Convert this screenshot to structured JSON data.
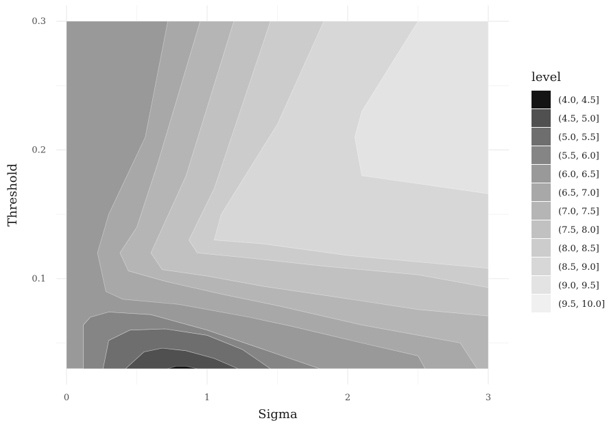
{
  "chart_data": {
    "type": "contour",
    "xlabel": "Sigma",
    "ylabel": "Threshold",
    "xlim": [
      0,
      3
    ],
    "ylim": [
      0.03,
      0.3
    ],
    "xticks": [
      "0",
      "1",
      "2",
      "3"
    ],
    "yticks": [
      "0.1",
      "0.2",
      "0.3"
    ],
    "grid": true,
    "legend": {
      "title": "level",
      "position": "right",
      "entries": [
        {
          "label": "(4.0, 4.5]",
          "color": "#141414"
        },
        {
          "label": "(4.5, 5.0]",
          "color": "#505050"
        },
        {
          "label": "(5.0, 5.5]",
          "color": "#6e6e6e"
        },
        {
          "label": "(5.5, 6.0]",
          "color": "#858585"
        },
        {
          "label": "(6.0, 6.5]",
          "color": "#999999"
        },
        {
          "label": "(6.5, 7.0]",
          "color": "#a8a8a8"
        },
        {
          "label": "(7.0, 7.5]",
          "color": "#b5b5b5"
        },
        {
          "label": "(7.5, 8.0]",
          "color": "#c1c1c1"
        },
        {
          "label": "(8.0, 8.5]",
          "color": "#cccccc"
        },
        {
          "label": "(8.5, 9.0]",
          "color": "#d7d7d7"
        },
        {
          "label": "(9.0, 9.5]",
          "color": "#e3e3e3"
        },
        {
          "label": "(9.5, 10.0]",
          "color": "#f0f0f0"
        }
      ]
    },
    "contours": [
      {
        "level": "(6.0, 6.5]",
        "points": [
          [
            0,
            0.03
          ],
          [
            3,
            0.03
          ],
          [
            3,
            0.3
          ],
          [
            0,
            0.3
          ]
        ]
      },
      {
        "level": "(6.5, 7.0]",
        "points": [
          [
            0,
            0.03
          ],
          [
            3,
            0.03
          ],
          [
            3,
            0.3
          ],
          [
            0.72,
            0.3
          ],
          [
            0.56,
            0.21
          ],
          [
            0.3,
            0.15
          ],
          [
            0.22,
            0.12
          ],
          [
            0.28,
            0.09
          ],
          [
            0.4,
            0.084
          ],
          [
            0.8,
            0.08
          ],
          [
            1.3,
            0.07
          ],
          [
            1.6,
            0.063
          ],
          [
            2.1,
            0.05
          ],
          [
            2.5,
            0.04
          ],
          [
            2.55,
            0.03
          ]
        ]
      },
      {
        "level": "(6.5, 7.0]",
        "points": [
          [
            0,
            0.03
          ],
          [
            0.12,
            0.03
          ],
          [
            0.12,
            0.064
          ],
          [
            0.17,
            0.07
          ],
          [
            0.3,
            0.074
          ],
          [
            0.6,
            0.072
          ],
          [
            1.0,
            0.06
          ],
          [
            1.4,
            0.045
          ],
          [
            1.8,
            0.03
          ]
        ]
      },
      {
        "level": "(7.0, 7.5]",
        "points": [
          [
            3,
            0.03
          ],
          [
            3,
            0.3
          ],
          [
            0.95,
            0.3
          ],
          [
            0.65,
            0.19
          ],
          [
            0.5,
            0.14
          ],
          [
            0.38,
            0.12
          ],
          [
            0.44,
            0.106
          ],
          [
            0.7,
            0.098
          ],
          [
            1.1,
            0.088
          ],
          [
            1.5,
            0.079
          ],
          [
            2.1,
            0.064
          ],
          [
            2.8,
            0.05
          ],
          [
            2.92,
            0.03
          ]
        ]
      },
      {
        "level": "(7.5, 8.0]",
        "points": [
          [
            3,
            0.3
          ],
          [
            1.19,
            0.3
          ],
          [
            0.85,
            0.18
          ],
          [
            0.6,
            0.12
          ],
          [
            0.68,
            0.107
          ],
          [
            1.0,
            0.102
          ],
          [
            1.4,
            0.094
          ],
          [
            1.9,
            0.086
          ],
          [
            2.5,
            0.076
          ],
          [
            3,
            0.071
          ]
        ]
      },
      {
        "level": "(8.0, 8.5]",
        "points": [
          [
            3,
            0.3
          ],
          [
            1.45,
            0.3
          ],
          [
            1.05,
            0.17
          ],
          [
            0.87,
            0.13
          ],
          [
            0.93,
            0.12
          ],
          [
            1.3,
            0.116
          ],
          [
            1.8,
            0.11
          ],
          [
            2.5,
            0.103
          ],
          [
            3,
            0.093
          ]
        ]
      },
      {
        "level": "(8.5, 9.0]",
        "points": [
          [
            3,
            0.3
          ],
          [
            1.83,
            0.3
          ],
          [
            1.5,
            0.22
          ],
          [
            1.1,
            0.15
          ],
          [
            1.05,
            0.13
          ],
          [
            1.4,
            0.127
          ],
          [
            2.0,
            0.118
          ],
          [
            3,
            0.108
          ]
        ]
      },
      {
        "level": "(9.0, 9.5]",
        "points": [
          [
            3,
            0.3
          ],
          [
            2.5,
            0.3
          ],
          [
            2.1,
            0.23
          ],
          [
            2.05,
            0.21
          ],
          [
            2.1,
            0.18
          ],
          [
            3,
            0.166
          ]
        ]
      },
      {
        "level": "(4.5, 5.0]",
        "points": [
          [
            0.42,
            0.03
          ],
          [
            1.22,
            0.03
          ],
          [
            1.05,
            0.038
          ],
          [
            0.85,
            0.044
          ],
          [
            0.68,
            0.046
          ],
          [
            0.55,
            0.043
          ]
        ]
      },
      {
        "level": "(5.0, 5.5]",
        "points": [
          [
            0.26,
            0.03
          ],
          [
            0.42,
            0.03
          ],
          [
            0.55,
            0.043
          ],
          [
            0.68,
            0.046
          ],
          [
            0.85,
            0.044
          ],
          [
            1.05,
            0.038
          ],
          [
            1.22,
            0.03
          ],
          [
            1.45,
            0.03
          ],
          [
            1.25,
            0.045
          ],
          [
            1.0,
            0.056
          ],
          [
            0.7,
            0.061
          ],
          [
            0.45,
            0.06
          ],
          [
            0.3,
            0.052
          ]
        ]
      },
      {
        "level": "(5.5, 6.0]",
        "points": [
          [
            0.12,
            0.03
          ],
          [
            0.26,
            0.03
          ],
          [
            0.3,
            0.052
          ],
          [
            0.45,
            0.06
          ],
          [
            0.7,
            0.061
          ],
          [
            1.0,
            0.056
          ],
          [
            1.25,
            0.045
          ],
          [
            1.45,
            0.03
          ],
          [
            1.8,
            0.03
          ],
          [
            1.4,
            0.045
          ],
          [
            1.0,
            0.06
          ],
          [
            0.6,
            0.072
          ],
          [
            0.3,
            0.074
          ],
          [
            0.17,
            0.07
          ],
          [
            0.12,
            0.064
          ]
        ]
      },
      {
        "level": "(4.0, 4.5]",
        "points": [
          [
            0.72,
            0.03
          ],
          [
            0.93,
            0.03
          ],
          [
            0.85,
            0.032
          ],
          [
            0.78,
            0.032
          ]
        ]
      }
    ]
  }
}
